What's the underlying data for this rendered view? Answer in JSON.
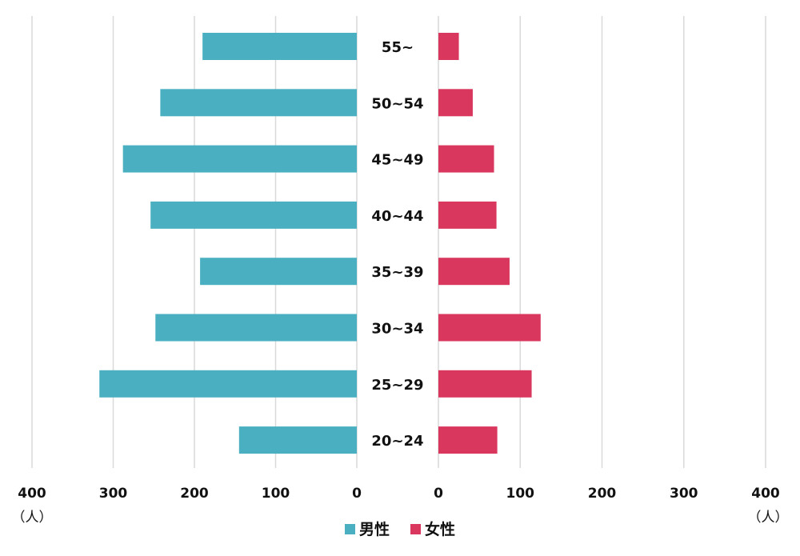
{
  "chart_data": {
    "type": "bar",
    "orientation": "horizontal",
    "layout": "population-pyramid",
    "categories": [
      "55~",
      "50~54",
      "45~49",
      "40~44",
      "35~39",
      "30~34",
      "25~29",
      "20~24"
    ],
    "series": [
      {
        "name": "男性",
        "color": "#4ab0c1",
        "side": "left",
        "values": [
          190,
          242,
          288,
          254,
          193,
          248,
          317,
          145
        ]
      },
      {
        "name": "女性",
        "color": "#d9375e",
        "side": "right",
        "values": [
          25,
          42,
          68,
          71,
          87,
          125,
          114,
          72
        ]
      }
    ],
    "x_ticks": [
      400,
      300,
      200,
      100,
      0
    ],
    "xlim": [
      0,
      400
    ],
    "unit_label": "（人）",
    "grid": true,
    "legend_position": "bottom"
  }
}
